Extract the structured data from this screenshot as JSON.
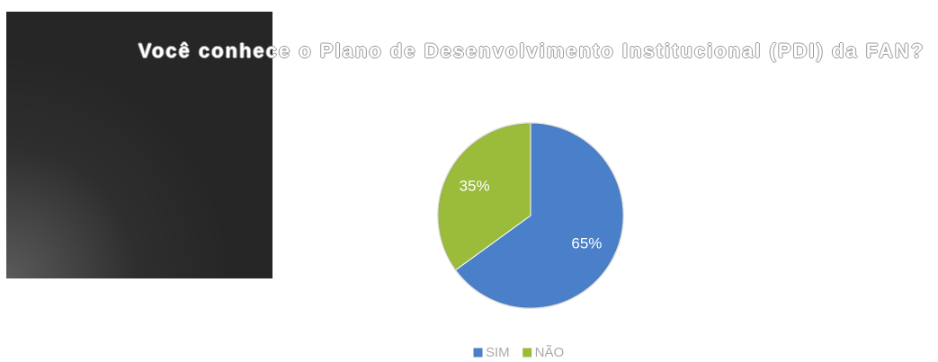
{
  "chart_data": {
    "type": "pie",
    "title": "Você conhece o Plano de Desenvolvimento Institucional (PDI) da FAN?",
    "categories": [
      "SIM",
      "NÃO"
    ],
    "values": [
      65,
      35
    ],
    "value_labels": [
      "65%",
      "35%"
    ],
    "colors": [
      "#4a7fc9",
      "#9bbb3b"
    ],
    "legend": "bottom"
  }
}
